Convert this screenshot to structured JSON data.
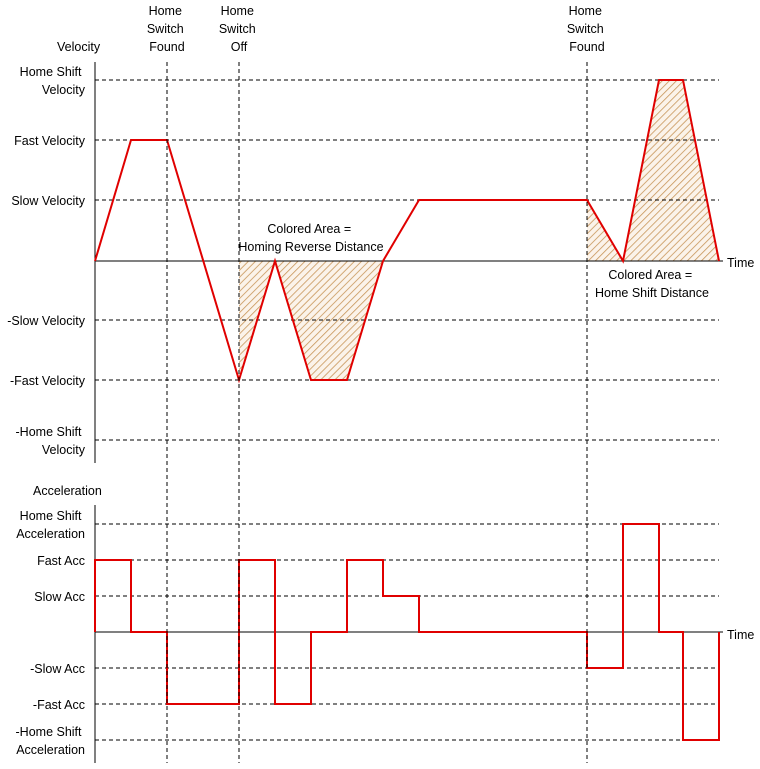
{
  "colors": {
    "curve": "#e00000",
    "hatch": "#c8965a",
    "hatch_bg": "#fbf3ea",
    "axis": "#000000"
  },
  "markers": [
    {
      "id": "home-switch-found-1",
      "lines": [
        "Home",
        "Switch",
        "Found"
      ]
    },
    {
      "id": "home-switch-off",
      "lines": [
        "Home",
        "Switch",
        "Off"
      ]
    },
    {
      "id": "home-switch-found-2",
      "lines": [
        "Home",
        "Switch",
        "Found"
      ]
    }
  ],
  "velocity": {
    "axis_label": "Velocity",
    "time_label": "Time",
    "levels": [
      {
        "id": "home-shift-velocity",
        "lines": [
          "Home Shift",
          "Velocity"
        ]
      },
      {
        "id": "fast-velocity",
        "lines": [
          "Fast Velocity"
        ]
      },
      {
        "id": "slow-velocity",
        "lines": [
          "Slow Velocity"
        ]
      },
      {
        "id": "neg-slow-velocity",
        "lines": [
          "-Slow Velocity"
        ]
      },
      {
        "id": "neg-fast-velocity",
        "lines": [
          "-Fast Velocity"
        ]
      },
      {
        "id": "neg-home-shift-velocity",
        "lines": [
          "-Home Shift",
          "Velocity"
        ]
      }
    ],
    "annotations": [
      {
        "id": "homing-reverse-distance-note",
        "lines": [
          "Colored Area =",
          "Homing Reverse Distance"
        ]
      },
      {
        "id": "home-shift-distance-note",
        "lines": [
          "Colored Area =",
          "Home Shift Distance"
        ]
      }
    ]
  },
  "acceleration": {
    "axis_label": "Acceleration",
    "time_label": "Time",
    "levels": [
      {
        "id": "home-shift-acceleration",
        "lines": [
          "Home Shift",
          "Acceleration"
        ]
      },
      {
        "id": "fast-acc",
        "lines": [
          "Fast Acc"
        ]
      },
      {
        "id": "slow-acc",
        "lines": [
          "Slow Acc"
        ]
      },
      {
        "id": "neg-slow-acc",
        "lines": [
          "-Slow Acc"
        ]
      },
      {
        "id": "neg-fast-acc",
        "lines": [
          "-Fast Acc"
        ]
      },
      {
        "id": "neg-home-shift-acceleration",
        "lines": [
          "-Home Shift",
          "Acceleration"
        ]
      }
    ]
  }
}
